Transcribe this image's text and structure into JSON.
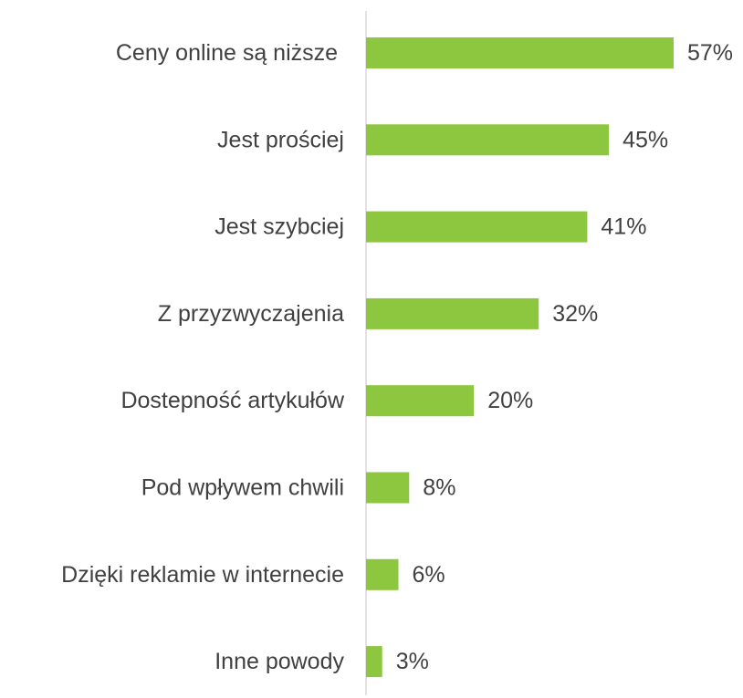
{
  "chart_data": {
    "type": "bar",
    "orientation": "horizontal",
    "categories": [
      "Ceny online są niższe ",
      "Jest prościej",
      "Jest szybciej",
      "Z przyzwyczajenia",
      "Dostepność artykułów",
      "Pod wpływem chwili",
      "Dzięki reklamie w internecie",
      "Inne powody"
    ],
    "values": [
      57,
      45,
      41,
      32,
      20,
      8,
      6,
      3
    ],
    "value_labels": [
      "57%",
      "45%",
      "41%",
      "32%",
      "20%",
      "8%",
      "6%",
      "3%"
    ],
    "title": "",
    "xlabel": "",
    "ylabel": "",
    "xlim": [
      0,
      57
    ],
    "grid": false,
    "legend": "none",
    "colors": {
      "bar": "#8dc63f",
      "axis": "#d9d9d9",
      "text": "#404040"
    }
  }
}
